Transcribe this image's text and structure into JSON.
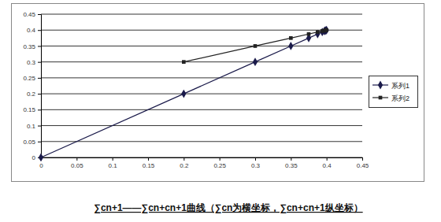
{
  "chart_data": {
    "type": "line",
    "title": "∑cn+1——∑cn+cn+1曲线（∑cn为横坐标，∑cn+cn+1纵坐标）",
    "series": [
      {
        "name": "系列1",
        "color": "#1a1a4a",
        "marker": "diamond",
        "x": [
          0,
          0.2,
          0.3,
          0.35,
          0.375,
          0.3875,
          0.394,
          0.397,
          0.398,
          0.399,
          0.4
        ],
        "values": [
          0,
          0.2,
          0.3,
          0.35,
          0.375,
          0.3875,
          0.394,
          0.397,
          0.398,
          0.399,
          0.4
        ]
      },
      {
        "name": "系列2",
        "color": "#222222",
        "marker": "square",
        "x": [
          0.2,
          0.3,
          0.35,
          0.375,
          0.3875,
          0.394,
          0.397,
          0.398,
          0.399,
          0.4
        ],
        "values": [
          0.3,
          0.35,
          0.375,
          0.3875,
          0.394,
          0.397,
          0.398,
          0.399,
          0.4,
          0.4
        ]
      }
    ],
    "xlim": [
      0,
      0.45
    ],
    "xticks": [
      0,
      0.05,
      0.1,
      0.15,
      0.2,
      0.25,
      0.3,
      0.35,
      0.4,
      0.45
    ],
    "ylim": [
      0,
      0.45
    ],
    "yticks": [
      0,
      0.05,
      0.1,
      0.15,
      0.2,
      0.25,
      0.3,
      0.35,
      0.4,
      0.45
    ],
    "grid": true,
    "legend": "right"
  }
}
